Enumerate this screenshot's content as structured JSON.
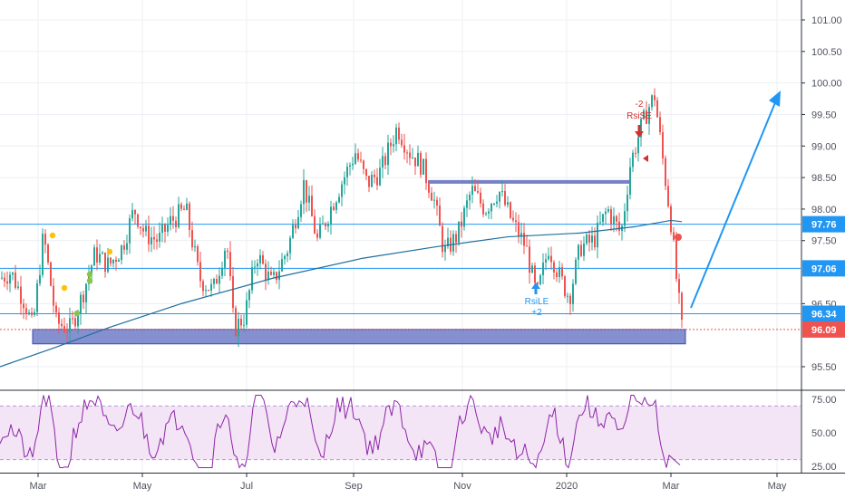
{
  "colors": {
    "up": "#26a69a",
    "down": "#ef5350",
    "hline": "#2196f3",
    "ma": "#1f6f9e",
    "zone": "#5c6bc0",
    "rsi": "#8e24aa",
    "rsi_band": "#f3e5f5",
    "price_badge": "#ef5350",
    "level_badge": "#2196f3",
    "grid": "#eceff3",
    "axis_text": "#50535e"
  },
  "chart_data": [
    {
      "type": "candlestick",
      "title": "",
      "x_ticks": [
        "Mar",
        "May",
        "Jul",
        "Sep",
        "Nov",
        "2020",
        "Mar",
        "May"
      ],
      "y_ticks": [
        "101.00",
        "100.50",
        "100.00",
        "99.50",
        "99.00",
        "98.50",
        "98.00",
        "97.50",
        "96.50",
        "95.50"
      ],
      "ylim": [
        95.3,
        101.2
      ],
      "grid": true,
      "horizontal_levels": [
        {
          "label": "97.76",
          "value": 97.76
        },
        {
          "label": "97.06",
          "value": 97.06
        },
        {
          "label": "96.34",
          "value": 96.34
        }
      ],
      "last_price": {
        "label": "96.09",
        "value": 96.09
      },
      "zones": [
        {
          "from": 95.92,
          "to": 96.12,
          "name": "support-zone"
        },
        {
          "from": 98.41,
          "to": 98.46,
          "name": "resistance-zone"
        }
      ],
      "moving_average": {
        "name": "trend line",
        "points": [
          [
            0,
            95.5
          ],
          [
            60,
            95.8
          ],
          [
            120,
            96.12
          ],
          [
            200,
            96.5
          ],
          [
            300,
            96.9
          ],
          [
            400,
            97.22
          ],
          [
            480,
            97.4
          ],
          [
            560,
            97.56
          ],
          [
            640,
            97.62
          ],
          [
            700,
            97.72
          ],
          [
            740,
            97.82
          ],
          [
            752,
            97.8
          ]
        ]
      },
      "candles_description": "about 250 daily candles from Feb 2019 to Mar 2020",
      "markers": [
        {
          "label": "RsiLE",
          "sublabel": "+2",
          "direction": "up"
        },
        {
          "label": "-2",
          "sublabel": "RsiSE",
          "direction": "down"
        }
      ],
      "projection_arrow": {
        "from": [
          95,
          96.45
        ],
        "to": [
          105,
          99.85
        ]
      }
    },
    {
      "type": "line",
      "name": "rsi",
      "y_ticks": [
        "75.00",
        "50.00",
        "25.00"
      ],
      "ylim": [
        23,
        80
      ],
      "bands": [
        30,
        70
      ]
    }
  ]
}
